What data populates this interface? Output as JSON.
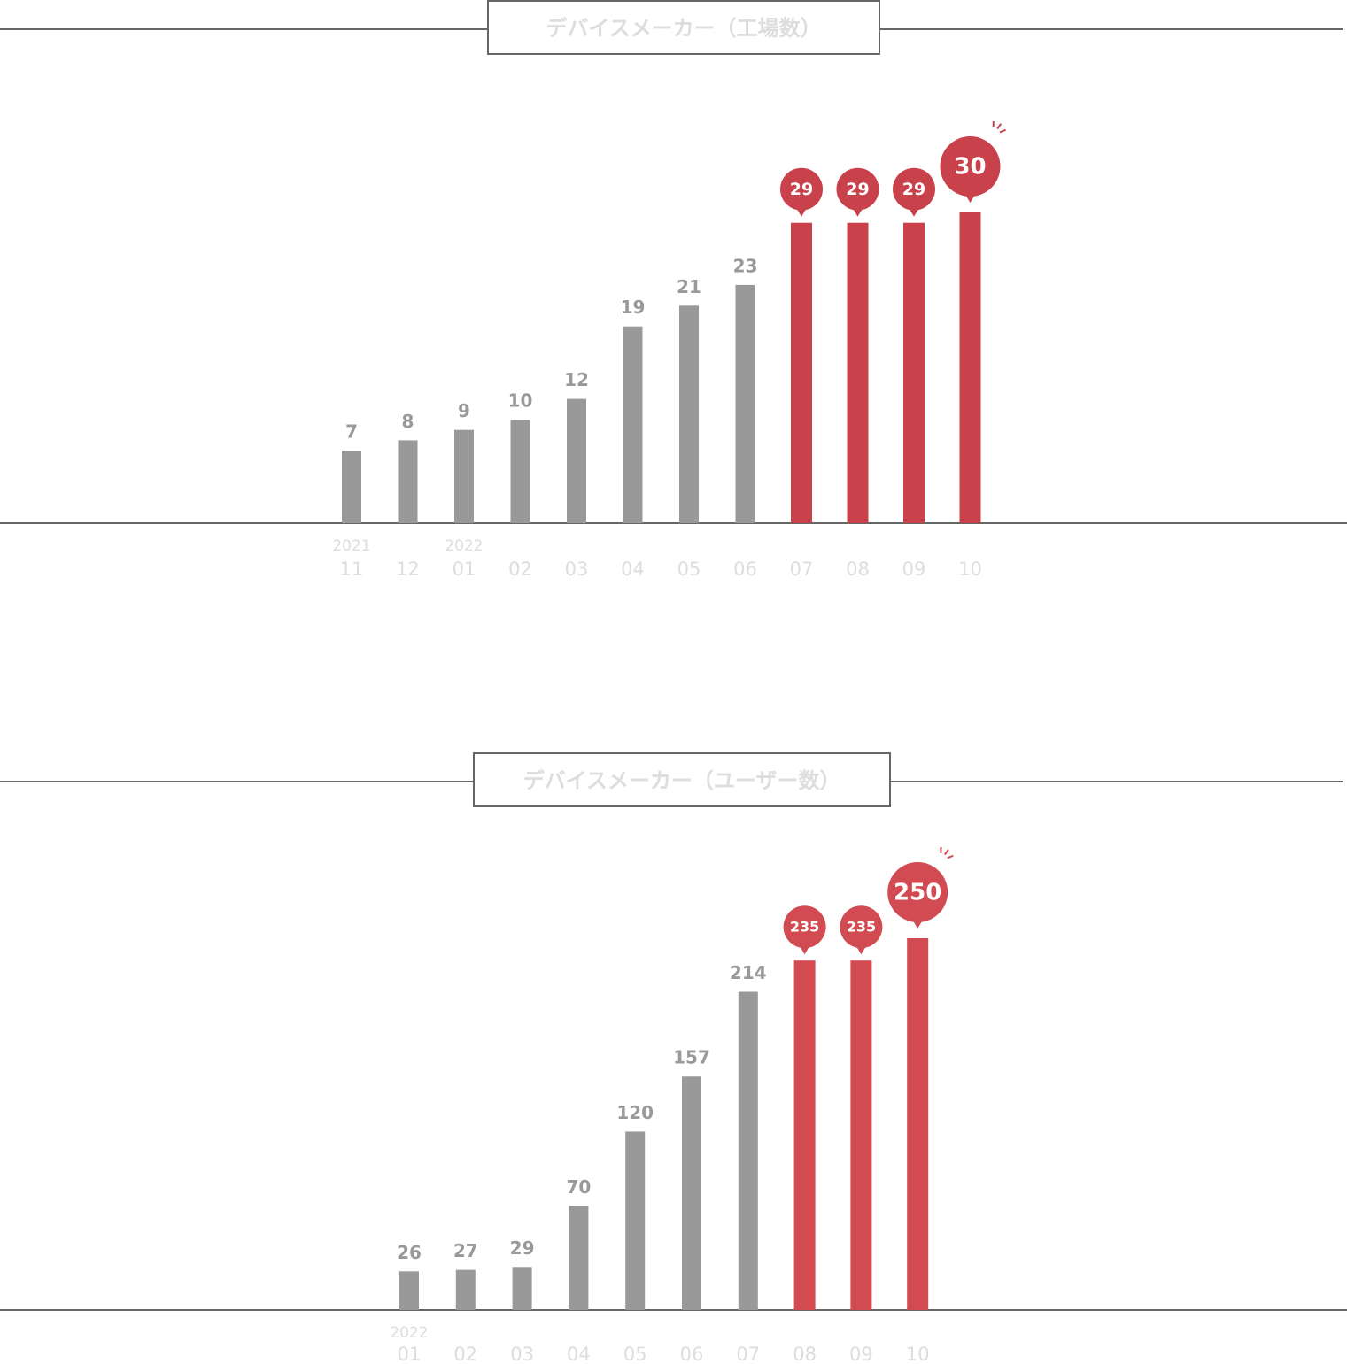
{
  "chart_data": [
    {
      "type": "bar",
      "title": "デバイスメーカー（工場数）",
      "categories": [
        "11",
        "12",
        "01",
        "02",
        "03",
        "04",
        "05",
        "06",
        "07",
        "08",
        "09",
        "10"
      ],
      "years": [
        "2021",
        null,
        "2022",
        null,
        null,
        null,
        null,
        null,
        null,
        null,
        null,
        null
      ],
      "values": [
        7,
        8,
        9,
        10,
        12,
        19,
        21,
        23,
        29,
        29,
        29,
        30
      ],
      "colors": [
        "#999999",
        "#999999",
        "#999999",
        "#999999",
        "#999999",
        "#999999",
        "#999999",
        "#999999",
        "#c8414b",
        "#c8414b",
        "#c8414b",
        "#c8414b"
      ],
      "highlight_color": "#c8414b",
      "ylim": [
        0,
        30
      ]
    },
    {
      "type": "bar",
      "title": "デバイスメーカー（ユーザー数）",
      "categories": [
        "01",
        "02",
        "03",
        "04",
        "05",
        "06",
        "07",
        "08",
        "09",
        "10"
      ],
      "years": [
        "2022",
        null,
        null,
        null,
        null,
        null,
        null,
        null,
        null,
        null
      ],
      "values": [
        26,
        27,
        29,
        70,
        120,
        157,
        214,
        235,
        235,
        250
      ],
      "colors": [
        "#999999",
        "#999999",
        "#999999",
        "#999999",
        "#999999",
        "#999999",
        "#999999",
        "#d24a52",
        "#d24a52",
        "#d24a52"
      ],
      "highlight_color": "#d24a52",
      "ylim": [
        0,
        250
      ]
    }
  ]
}
